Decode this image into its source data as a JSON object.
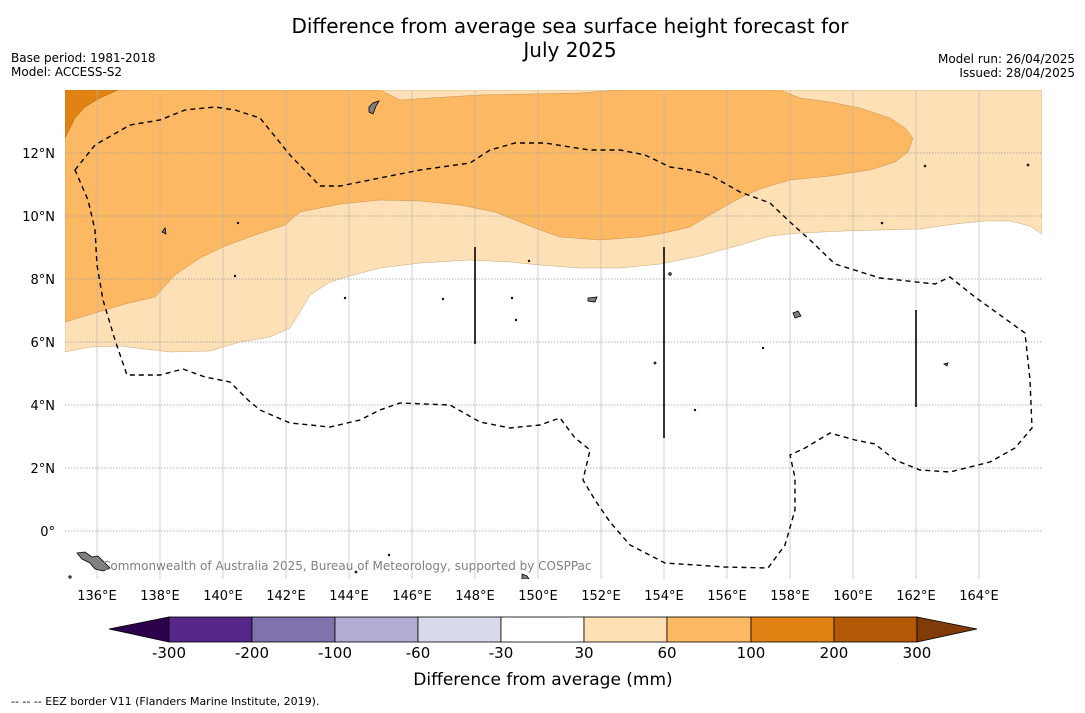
{
  "title_line1": "Difference from average sea surface height forecast for",
  "title_line2": "July 2025",
  "meta_left": {
    "base_period": "Base period: 1981-2018",
    "model": "Model: ACCESS-S2"
  },
  "meta_right": {
    "model_run": "Model run: 26/04/2025",
    "issued": "Issued: 28/04/2025"
  },
  "map": {
    "lon_labels": [
      "136°E",
      "138°E",
      "140°E",
      "142°E",
      "144°E",
      "146°E",
      "148°E",
      "150°E",
      "152°E",
      "154°E",
      "156°E",
      "158°E",
      "160°E",
      "162°E",
      "164°E"
    ],
    "lat_labels": [
      "12°N",
      "10°N",
      "8°N",
      "6°N",
      "4°N",
      "2°N",
      "0°"
    ],
    "copyright": "Commonwealth of Australia 2025, Bureau of Meteorology, supported by COSPPac"
  },
  "legend": {
    "title": "Difference from average (mm)",
    "tick_labels": [
      "-300",
      "-200",
      "-100",
      "-60",
      "-30",
      "30",
      "60",
      "100",
      "200",
      "300"
    ],
    "colors": {
      "below_-300": "#2d004b",
      "-300_-200": "#542788",
      "-200_-100": "#8073ac",
      "-100_-60": "#b2abd2",
      "-60_-30": "#d8daeb",
      "-30_30": "#ffffff",
      "30_60": "#fee0b6",
      "60_100": "#fdb863",
      "100_200": "#e08214",
      "200_300": "#b35806",
      "above_300": "#7f3b08"
    }
  },
  "footnote": "-- -- -- EEZ border V11 (Flanders Marine Institute, 2019)."
}
